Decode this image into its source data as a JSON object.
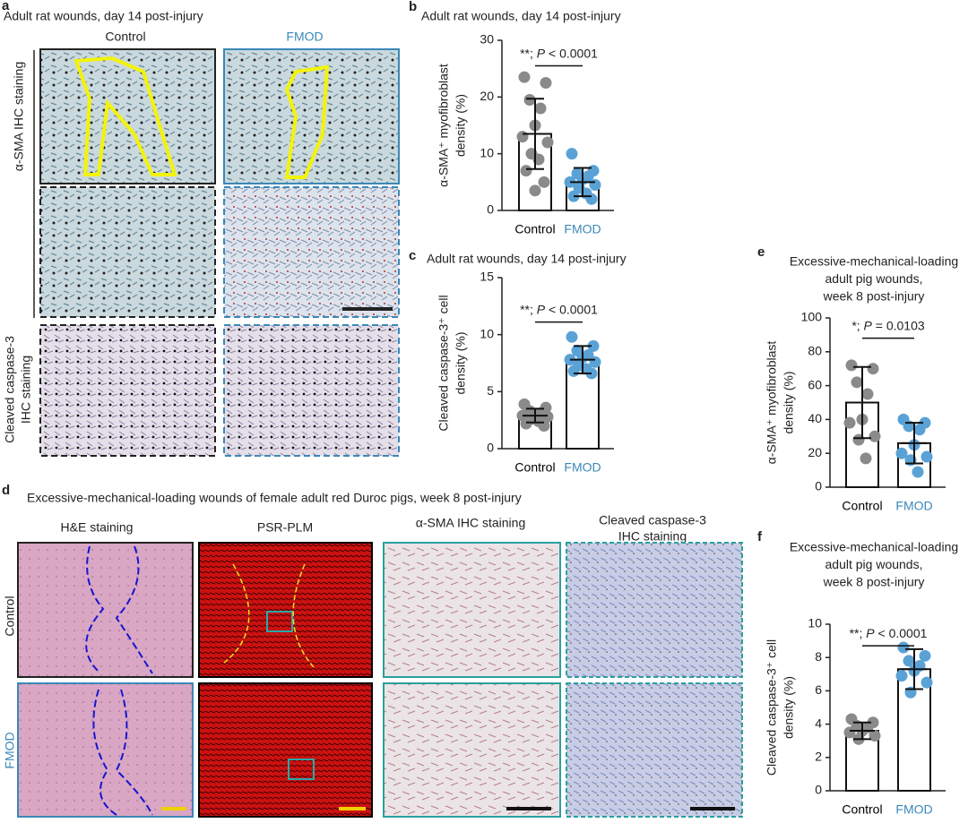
{
  "panel_a": {
    "letter": "a",
    "title": "Adult rat wounds, day 14 post-injury",
    "columns": [
      "Control",
      "FMOD"
    ],
    "row_1": "α-SMA IHC staining",
    "row_2": [
      "Cleaved caspase-3",
      "IHC staining"
    ]
  },
  "panel_d": {
    "letter": "d",
    "title": "Excessive-mechanical-loading wounds of female adult red Duroc pigs, week 8 post-injury",
    "columns": [
      "H&E staining",
      "PSR-PLM",
      "α-SMA IHC staining",
      [
        "Cleaved caspase-3",
        "IHC staining"
      ]
    ],
    "rows": [
      "Control",
      "FMOD"
    ]
  },
  "chart_data": [
    {
      "type": "bar",
      "letter": "b",
      "title": [
        "Adult rat wounds, day 14 post-injury"
      ],
      "ylabel": [
        "α-SMA⁺ myofibroblast",
        "density (%)"
      ],
      "categories": [
        "Control",
        "FMOD"
      ],
      "category_colors": [
        "#000000",
        "#3b88b8"
      ],
      "point_colors": [
        "#8a8a8a",
        "#5aa2d6"
      ],
      "values": [
        13.5,
        5.0
      ],
      "errors": [
        6.2,
        2.5
      ],
      "points": [
        [
          23.5,
          22.5,
          19.5,
          18,
          15,
          13,
          12,
          10,
          9,
          7,
          5,
          3.5
        ],
        [
          10,
          7,
          6.5,
          6,
          5.5,
          5,
          4.5,
          4,
          3,
          2.5,
          2
        ]
      ],
      "ylim": [
        0,
        30
      ],
      "yticks": [
        0,
        10,
        20,
        30
      ],
      "annotation": [
        "**; ",
        "P",
        " < 0.0001"
      ]
    },
    {
      "type": "bar",
      "letter": "c",
      "title": [
        "Adult rat wounds, day 14 post-injury"
      ],
      "ylabel": [
        "Cleaved caspase-3⁺ cell",
        "density (%)"
      ],
      "categories": [
        "Control",
        "FMOD"
      ],
      "category_colors": [
        "#000000",
        "#3b88b8"
      ],
      "point_colors": [
        "#8a8a8a",
        "#5aa2d6"
      ],
      "values": [
        2.9,
        7.8
      ],
      "errors": [
        0.6,
        1.2
      ],
      "points": [
        [
          3.9,
          3.6,
          3.3,
          3.1,
          3,
          2.9,
          2.8,
          2.6,
          2.4,
          2.2,
          2.0
        ],
        [
          9.8,
          9,
          8.6,
          8.2,
          8,
          7.8,
          7.6,
          7.3,
          7,
          6.8,
          6.6
        ]
      ],
      "ylim": [
        0,
        15
      ],
      "yticks": [
        0,
        5,
        10,
        15
      ],
      "annotation": [
        "**; ",
        "P",
        " < 0.0001"
      ]
    },
    {
      "type": "bar",
      "letter": "e",
      "title": [
        "Excessive-mechanical-loading",
        "adult pig wounds,",
        "week 8 post-injury"
      ],
      "ylabel": [
        "α-SMA⁺ myofibroblast",
        "density (%)"
      ],
      "categories": [
        "Control",
        "FMOD"
      ],
      "category_colors": [
        "#000000",
        "#3b88b8"
      ],
      "point_colors": [
        "#8a8a8a",
        "#5aa2d6"
      ],
      "values": [
        50,
        26
      ],
      "errors": [
        21,
        12
      ],
      "points": [
        [
          72,
          70,
          62,
          55,
          40,
          38,
          30,
          28,
          17
        ],
        [
          40,
          38,
          36,
          34,
          25,
          20,
          18,
          16,
          9
        ]
      ],
      "ylim": [
        0,
        100
      ],
      "yticks": [
        0,
        20,
        40,
        60,
        80,
        100
      ],
      "annotation": [
        "*; ",
        "P",
        " = 0.0103"
      ]
    },
    {
      "type": "bar",
      "letter": "f",
      "title": [
        "Excessive-mechanical-loading",
        "adult pig wounds,",
        "week 8 post-injury"
      ],
      "ylabel": [
        "Cleaved caspase-3⁺ cell",
        "density (%)"
      ],
      "categories": [
        "Control",
        "FMOD"
      ],
      "category_colors": [
        "#000000",
        "#3b88b8"
      ],
      "point_colors": [
        "#8a8a8a",
        "#5aa2d6"
      ],
      "values": [
        3.6,
        7.3
      ],
      "errors": [
        0.5,
        1.2
      ],
      "points": [
        [
          4.3,
          4.1,
          3.9,
          3.8,
          3.6,
          3.5,
          3.3,
          3.1
        ],
        [
          8.6,
          8.1,
          7.8,
          7.5,
          7.2,
          6.9,
          6.5,
          5.9
        ]
      ],
      "ylim": [
        0,
        10
      ],
      "yticks": [
        0,
        2,
        4,
        6,
        8,
        10
      ],
      "annotation": [
        "**; ",
        "P",
        " < 0.0001"
      ]
    }
  ]
}
